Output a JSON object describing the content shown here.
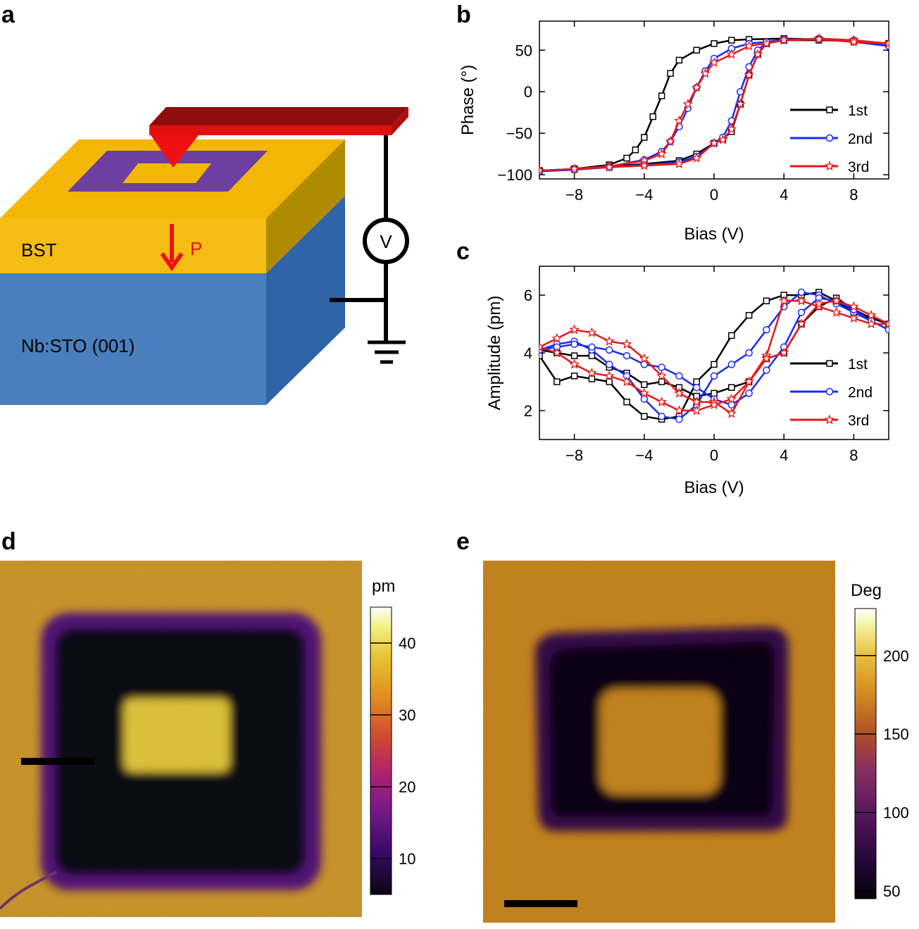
{
  "panels": {
    "a": "a",
    "b": "b",
    "c": "c",
    "d": "d",
    "e": "e"
  },
  "schematic": {
    "layer_top_label": "BST",
    "layer_bottom_label": "Nb:STO (001)",
    "polarization_label": "P",
    "voltmeter_label": "V",
    "colors": {
      "bst": "#f2b705",
      "bst_side": "#b08a00",
      "sto": "#4a7fbd",
      "sto_side": "#2f64a8",
      "square": "#6c3fa0",
      "cantilever": "#cc1010",
      "arrow": "#ee1111"
    }
  },
  "chart_data": [
    {
      "id": "b",
      "type": "line",
      "xlabel": "Bias (V)",
      "ylabel": "Phase (°)",
      "xlim": [
        -10,
        10
      ],
      "ylim": [
        -105,
        85
      ],
      "xticks": [
        -8,
        -4,
        0,
        4,
        8
      ],
      "yticks": [
        -100,
        -50,
        0,
        50
      ],
      "xtick_labels": [
        "−8",
        "−4",
        "0",
        "4",
        "8"
      ],
      "ytick_labels": [
        "−100",
        "−50",
        "0",
        "50"
      ],
      "legend": {
        "position": "right",
        "entries": [
          "1st",
          "2nd",
          "3rd"
        ]
      },
      "series": [
        {
          "name": "1st",
          "color": "#000000",
          "marker": "square",
          "x": [
            -10,
            -8,
            -6,
            -5,
            -4.5,
            -4,
            -3.5,
            -3,
            -2.5,
            -2,
            -1,
            0,
            1,
            2,
            4,
            6,
            8,
            10,
            8,
            6,
            4,
            3,
            2.5,
            2,
            1.5,
            1,
            0.5,
            0,
            -1,
            -2,
            -4,
            -6,
            -8,
            -10
          ],
          "y": [
            -95,
            -93,
            -88,
            -80,
            -70,
            -55,
            -30,
            -5,
            22,
            38,
            50,
            58,
            62,
            63,
            64,
            63,
            61,
            58,
            61,
            62,
            62,
            58,
            45,
            20,
            -15,
            -48,
            -57,
            -62,
            -75,
            -83,
            -87,
            -90,
            -93,
            -95
          ]
        },
        {
          "name": "2nd",
          "color": "#1a2cf0",
          "marker": "circle",
          "x": [
            -10,
            -8,
            -6,
            -4,
            -3,
            -2.5,
            -2,
            -1.5,
            -1,
            -0.5,
            0,
            1,
            2,
            4,
            6,
            8,
            10,
            8,
            6,
            4,
            3,
            2.5,
            2,
            1.5,
            1,
            0.5,
            0,
            -1,
            -2,
            -4,
            -6,
            -8,
            -10
          ],
          "y": [
            -96,
            -94,
            -90,
            -82,
            -72,
            -60,
            -42,
            -20,
            5,
            25,
            40,
            52,
            58,
            62,
            64,
            62,
            55,
            60,
            63,
            63,
            60,
            50,
            30,
            0,
            -35,
            -55,
            -62,
            -78,
            -85,
            -88,
            -91,
            -94,
            -96
          ]
        },
        {
          "name": "3rd",
          "color": "#e81818",
          "marker": "star",
          "x": [
            -10,
            -8,
            -6,
            -4,
            -3,
            -2.5,
            -2,
            -1.5,
            -1,
            -0.5,
            0,
            1,
            2,
            4,
            6,
            8,
            10,
            8,
            6,
            4,
            3,
            2.5,
            2,
            1.5,
            1,
            0.5,
            0,
            -1,
            -2,
            -4,
            -6,
            -8,
            -10
          ],
          "y": [
            -95,
            -93,
            -90,
            -83,
            -75,
            -60,
            -35,
            -15,
            5,
            22,
            35,
            45,
            55,
            62,
            64,
            62,
            58,
            60,
            63,
            62,
            58,
            45,
            20,
            -15,
            -45,
            -58,
            -62,
            -80,
            -87,
            -89,
            -91,
            -93,
            -95
          ]
        }
      ]
    },
    {
      "id": "c",
      "type": "line",
      "xlabel": "Bias (V)",
      "ylabel": "Amplitude (pm)",
      "xlim": [
        -10,
        10
      ],
      "ylim": [
        1,
        7
      ],
      "xticks": [
        -8,
        -4,
        0,
        4,
        8
      ],
      "yticks": [
        2,
        4,
        6
      ],
      "xtick_labels": [
        "−8",
        "−4",
        "0",
        "4",
        "8"
      ],
      "ytick_labels": [
        "2",
        "4",
        "6"
      ],
      "legend": {
        "position": "right",
        "entries": [
          "1st",
          "2nd",
          "3rd"
        ]
      },
      "series": [
        {
          "name": "1st",
          "color": "#000000",
          "marker": "square",
          "x": [
            -10,
            -9,
            -8,
            -7,
            -6,
            -5,
            -4,
            -3,
            -2,
            -1,
            0,
            1,
            2,
            3,
            4,
            5,
            6,
            7,
            8,
            9,
            10,
            9,
            8,
            7,
            6,
            5,
            4,
            3,
            2,
            1,
            0,
            -1,
            -2,
            -3,
            -4,
            -5,
            -6,
            -7,
            -8,
            -9,
            -10
          ],
          "y": [
            3.9,
            3.0,
            3.2,
            3.1,
            3.0,
            2.3,
            1.8,
            1.7,
            1.8,
            3.0,
            3.6,
            4.6,
            5.3,
            5.8,
            6.0,
            6.0,
            6.1,
            5.8,
            5.4,
            5.2,
            5.0,
            5.2,
            5.5,
            5.9,
            5.6,
            5.0,
            4.0,
            3.8,
            3.0,
            2.8,
            2.6,
            2.5,
            2.8,
            3.0,
            2.9,
            3.3,
            3.5,
            3.9,
            3.9,
            4.0,
            4.1
          ]
        },
        {
          "name": "2nd",
          "color": "#1a2cf0",
          "marker": "circle",
          "x": [
            -10,
            -9,
            -8,
            -7,
            -6,
            -5,
            -4,
            -3,
            -2,
            -1,
            0,
            1,
            2,
            3,
            4,
            5,
            6,
            7,
            8,
            9,
            10,
            9,
            8,
            7,
            6,
            5,
            4,
            3,
            2,
            1,
            0,
            -1,
            -2,
            -3,
            -4,
            -5,
            -6,
            -7,
            -8,
            -9,
            -10
          ],
          "y": [
            4.1,
            4.3,
            4.4,
            4.1,
            3.6,
            3.2,
            2.4,
            1.8,
            1.7,
            2.2,
            3.2,
            3.6,
            4.0,
            4.8,
            5.6,
            6.1,
            6.0,
            5.7,
            5.4,
            5.1,
            4.8,
            5.1,
            5.5,
            5.8,
            5.9,
            5.4,
            4.2,
            3.4,
            2.6,
            2.2,
            2.4,
            2.8,
            3.2,
            3.5,
            3.6,
            3.9,
            4.1,
            4.2,
            4.3,
            4.2,
            4.1
          ]
        },
        {
          "name": "3rd",
          "color": "#e81818",
          "marker": "star",
          "x": [
            -10,
            -9,
            -8,
            -7,
            -6,
            -5,
            -4,
            -3,
            -2,
            -1,
            0,
            1,
            2,
            3,
            4,
            5,
            6,
            7,
            8,
            9,
            10,
            9,
            8,
            7,
            6,
            5,
            4,
            3,
            2,
            1,
            0,
            -1,
            -2,
            -3,
            -4,
            -5,
            -6,
            -7,
            -8,
            -9,
            -10
          ],
          "y": [
            4.2,
            4.5,
            4.8,
            4.7,
            4.4,
            4.3,
            3.8,
            3.2,
            2.6,
            2.3,
            2.3,
            1.9,
            3.0,
            3.9,
            5.8,
            5.8,
            5.6,
            5.4,
            5.2,
            5.0,
            5.0,
            5.3,
            5.6,
            5.8,
            5.7,
            5.0,
            4.0,
            3.8,
            3.0,
            2.4,
            2.2,
            2.0,
            2.0,
            2.3,
            2.6,
            3.0,
            3.2,
            3.3,
            3.6,
            4.0,
            4.2
          ]
        }
      ]
    }
  ],
  "maps": {
    "d": {
      "colorbar_title": "pm",
      "colorbar_ticks": [
        "40",
        "30",
        "20",
        "10"
      ],
      "colorbar_tick_values": [
        40,
        30,
        20,
        10
      ],
      "range": [
        5,
        45
      ],
      "colors": [
        "#0a0610",
        "#3a0a6a",
        "#7a1a8a",
        "#b02070",
        "#d04a30",
        "#e08a20",
        "#e6c030",
        "#f0f080",
        "#ffffff"
      ]
    },
    "e": {
      "colorbar_title": "Deg",
      "colorbar_ticks": [
        "200",
        "150",
        "100",
        "50"
      ],
      "colorbar_tick_values": [
        200,
        150,
        100,
        50
      ],
      "range": [
        45,
        230
      ],
      "colors": [
        "#050208",
        "#2a0840",
        "#5a1860",
        "#8a3060",
        "#b05028",
        "#d08820",
        "#e8c040",
        "#f2f2a0",
        "#ffffff"
      ]
    }
  }
}
